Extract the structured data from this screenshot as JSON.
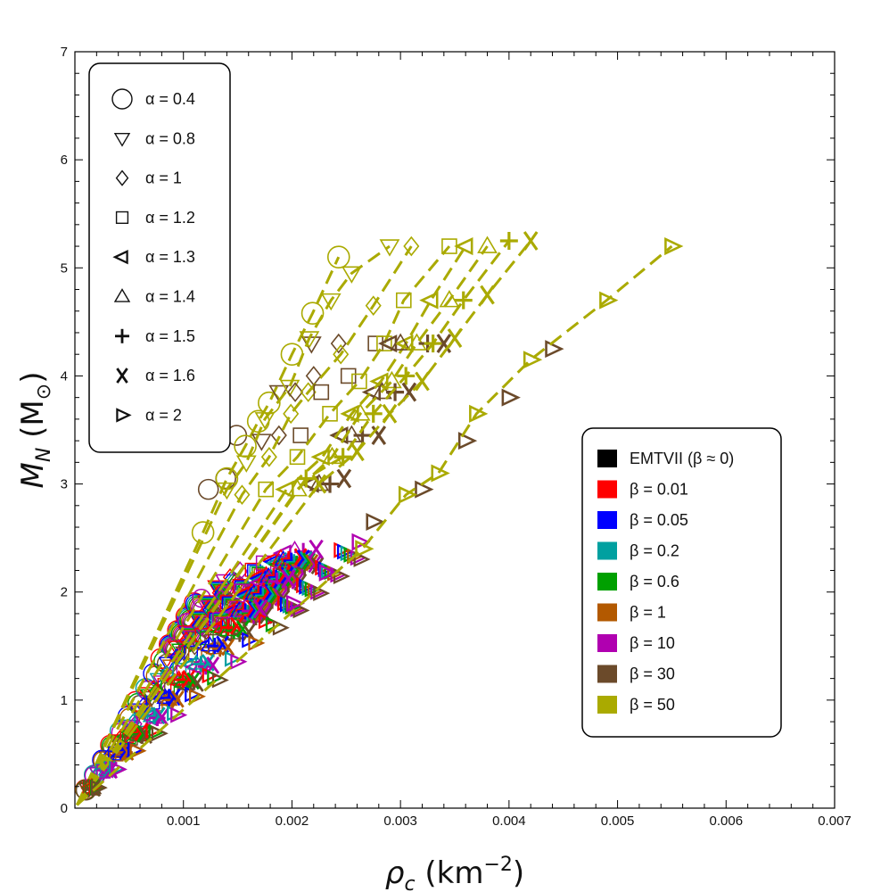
{
  "chart_data": {
    "type": "scatter",
    "xlabel_symbol": "ρ",
    "xlabel_sub": "c",
    "xlabel_unit_base": "(km",
    "xlabel_unit_exp": "−2",
    "xlabel_unit_close": ")",
    "ylabel_symbol": "M",
    "ylabel_sub": "N",
    "ylabel_unit_open": "(M",
    "ylabel_unit_sub": "⊙",
    "ylabel_unit_close": ")",
    "xlim": [
      0,
      0.007
    ],
    "ylim": [
      0,
      7
    ],
    "x_ticks": [
      "0.001",
      "0.002",
      "0.003",
      "0.004",
      "0.005",
      "0.006",
      "0.007"
    ],
    "y_ticks": [
      "0",
      "1",
      "2",
      "3",
      "4",
      "5",
      "6",
      "7"
    ],
    "grid": false,
    "alpha_legend_position": "top-left",
    "beta_legend_position": "center-right",
    "alpha_legend": [
      {
        "marker": "circle",
        "label": "α = 0.4"
      },
      {
        "marker": "triangle-down",
        "label": "α = 0.8"
      },
      {
        "marker": "diamond",
        "label": "α = 1"
      },
      {
        "marker": "square",
        "label": "α = 1.2"
      },
      {
        "marker": "triangle-left",
        "label": "α = 1.3"
      },
      {
        "marker": "triangle-up",
        "label": "α = 1.4"
      },
      {
        "marker": "plus",
        "label": "α = 1.5"
      },
      {
        "marker": "x",
        "label": "α = 1.6"
      },
      {
        "marker": "triangle-right",
        "label": "α = 2"
      }
    ],
    "beta_legend": [
      {
        "color": "#000000",
        "label": "EMTVII (β ≈ 0)"
      },
      {
        "color": "#ff0000",
        "label": "β = 0.01"
      },
      {
        "color": "#0000ff",
        "label": "β = 0.05"
      },
      {
        "color": "#00a0a0",
        "label": "β = 0.2"
      },
      {
        "color": "#00a000",
        "label": "β = 0.6"
      },
      {
        "color": "#b35900",
        "label": "β = 1"
      },
      {
        "color": "#b000b0",
        "label": "β = 10"
      },
      {
        "color": "#6b4a2a",
        "label": "β = 30"
      },
      {
        "color": "#aaaa00",
        "label": "β = 50"
      }
    ],
    "series": [
      {
        "alpha": 0.4,
        "marker": "circle",
        "slope_colored": 1700,
        "beta50": {
          "x": [
            0.00118,
            0.0014,
            0.00157,
            0.00169,
            0.00179,
            0.002,
            0.00219,
            0.00243
          ],
          "y": [
            2.55,
            3.05,
            3.35,
            3.58,
            3.75,
            4.2,
            4.58,
            5.1
          ]
        },
        "beta30": {
          "x": [
            0.00123,
            0.00139,
            0.00149
          ],
          "y": [
            2.95,
            3.05,
            3.45
          ]
        }
      },
      {
        "alpha": 0.8,
        "marker": "triangle-down",
        "slope_colored": 1550,
        "beta50": {
          "x": [
            0.0014,
            0.00158,
            0.00175,
            0.00198,
            0.00216,
            0.00236,
            0.00255,
            0.0029
          ],
          "y": [
            2.95,
            3.2,
            3.6,
            3.9,
            4.35,
            4.7,
            4.95,
            5.2
          ]
        },
        "beta30": {
          "x": [
            0.00172,
            0.00188,
            0.00218
          ],
          "y": [
            3.4,
            3.85,
            4.3
          ]
        }
      },
      {
        "alpha": 1,
        "marker": "diamond",
        "slope_colored": 1470,
        "beta50": {
          "x": [
            0.00154,
            0.00179,
            0.00199,
            0.00215,
            0.00245,
            0.00275,
            0.0031
          ],
          "y": [
            2.9,
            3.25,
            3.65,
            3.85,
            4.2,
            4.65,
            5.2
          ]
        },
        "beta30": {
          "x": [
            0.00188,
            0.00203,
            0.0022,
            0.00243
          ],
          "y": [
            3.45,
            3.85,
            4.0,
            4.3
          ]
        }
      },
      {
        "alpha": 1.2,
        "marker": "square",
        "slope_colored": 1330,
        "beta50": {
          "x": [
            0.00176,
            0.00205,
            0.00235,
            0.00262,
            0.00285,
            0.00303,
            0.00345
          ],
          "y": [
            2.95,
            3.25,
            3.65,
            3.95,
            4.3,
            4.7,
            5.2
          ]
        },
        "beta30": {
          "x": [
            0.00208,
            0.00227,
            0.00252,
            0.00277
          ],
          "y": [
            3.45,
            3.85,
            4.0,
            4.3
          ]
        }
      },
      {
        "alpha": 1.3,
        "marker": "triangle-left",
        "slope_colored": 1250,
        "beta50": {
          "x": [
            0.00195,
            0.00228,
            0.00255,
            0.00282,
            0.00305,
            0.00328,
            0.0036
          ],
          "y": [
            2.95,
            3.25,
            3.65,
            3.95,
            4.3,
            4.7,
            5.2
          ]
        },
        "beta30": {
          "x": [
            0.00218,
            0.00245,
            0.00275,
            0.0029
          ],
          "y": [
            3.0,
            3.45,
            3.85,
            4.3
          ]
        }
      },
      {
        "alpha": 1.4,
        "marker": "triangle-up",
        "slope_colored": 1200,
        "beta50": {
          "x": [
            0.00205,
            0.00237,
            0.00263,
            0.00292,
            0.00315,
            0.00345,
            0.0038
          ],
          "y": [
            2.95,
            3.25,
            3.65,
            3.95,
            4.3,
            4.7,
            5.2
          ]
        },
        "beta30": {
          "x": [
            0.00225,
            0.00255,
            0.00283,
            0.003
          ],
          "y": [
            3.0,
            3.45,
            3.85,
            4.3
          ]
        }
      },
      {
        "alpha": 1.5,
        "marker": "plus",
        "slope_colored": 1150,
        "beta50": {
          "x": [
            0.00213,
            0.00247,
            0.00275,
            0.00305,
            0.0033,
            0.00358,
            0.004
          ],
          "y": [
            3.05,
            3.25,
            3.65,
            4.0,
            4.3,
            4.7,
            5.25
          ]
        },
        "beta30": {
          "x": [
            0.00235,
            0.00265,
            0.00295,
            0.00325
          ],
          "y": [
            3.0,
            3.45,
            3.85,
            4.3
          ]
        }
      },
      {
        "alpha": 1.6,
        "marker": "x",
        "slope_colored": 1100,
        "beta50": {
          "x": [
            0.00225,
            0.0026,
            0.0029,
            0.0032,
            0.0035,
            0.0038,
            0.0042
          ],
          "y": [
            3.0,
            3.3,
            3.65,
            3.95,
            4.35,
            4.75,
            5.25
          ]
        },
        "beta30": {
          "x": [
            0.00248,
            0.0028,
            0.00308,
            0.0034
          ],
          "y": [
            3.05,
            3.45,
            3.85,
            4.3
          ]
        }
      },
      {
        "alpha": 2,
        "marker": "triangle-right",
        "slope_colored": 960,
        "beta50": {
          "x": [
            0.00265,
            0.00305,
            0.00335,
            0.0037,
            0.0042,
            0.0049,
            0.0055
          ],
          "y": [
            2.4,
            2.9,
            3.1,
            3.65,
            4.15,
            4.7,
            5.2
          ]
        },
        "beta30": {
          "x": [
            0.00275,
            0.0032,
            0.0036,
            0.004,
            0.0044
          ],
          "y": [
            2.65,
            2.95,
            3.4,
            3.8,
            4.25
          ]
        }
      }
    ]
  }
}
